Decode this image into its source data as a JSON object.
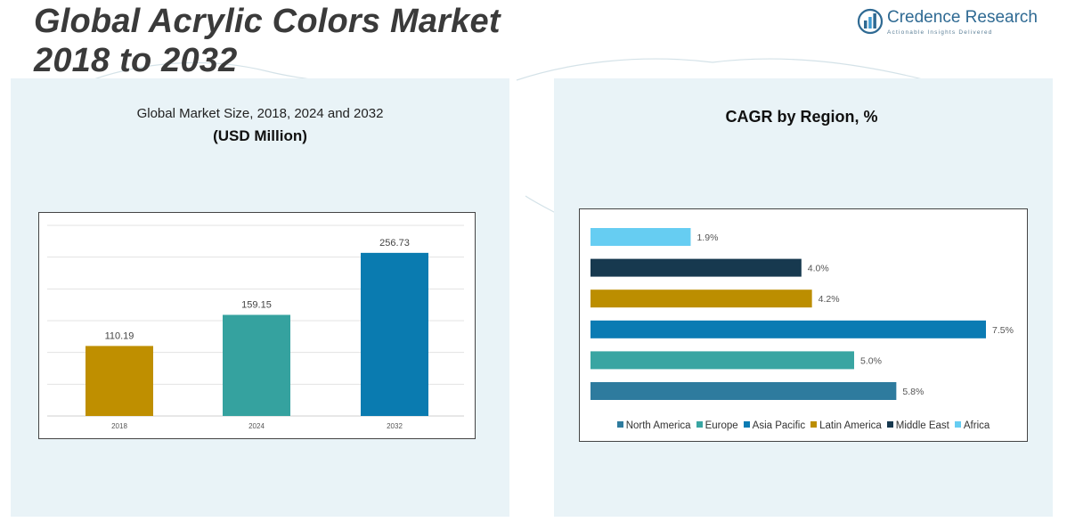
{
  "header": {
    "title_line1": "Global Acrylic Colors Market",
    "title_line2": "2018 to 2032"
  },
  "logo": {
    "name": "Credence Research",
    "tagline": "Actionable Insights Delivered",
    "icon": "bar-chart-logo-icon"
  },
  "left_panel": {
    "subtitle": "Global Market Size, 2018, 2024 and 2032",
    "unit": "(USD Million)"
  },
  "right_panel": {
    "title": "CAGR by Region, %"
  },
  "colors": {
    "2018": "#bf8f00",
    "2024": "#35a29f",
    "2032": "#0a7bb0",
    "north_america": "#2e7b9e",
    "europe": "#39a5a2",
    "asia_pacific": "#0b7bb3",
    "latin_america": "#bc8e00",
    "middle_east": "#17394f",
    "africa": "#66cdf2"
  },
  "chart_data": [
    {
      "type": "bar",
      "categories": [
        "2018",
        "2024",
        "2032"
      ],
      "values": [
        110.19,
        159.15,
        256.73
      ],
      "data_labels": [
        "110.19",
        "159.15",
        "256.73"
      ],
      "title": "Global Market Size, 2018, 2024 and 2032",
      "ylabel": "(USD Million)",
      "ylim": [
        0,
        300
      ],
      "grid": true
    },
    {
      "type": "bar",
      "orientation": "horizontal",
      "title": "CAGR by Region, %",
      "categories": [
        "Africa",
        "Middle East",
        "Latin America",
        "Asia Pacific",
        "Europe",
        "North America"
      ],
      "values": [
        1.9,
        4.0,
        4.2,
        7.5,
        5.0,
        5.8
      ],
      "data_labels": [
        "1.9%",
        "4.0%",
        "4.2%",
        "7.5%",
        "5.0%",
        "5.8%"
      ],
      "legend": [
        "North America",
        "Europe",
        "Asia Pacific",
        "Latin America",
        "Middle East",
        "Africa"
      ],
      "legend_position": "bottom",
      "xlim": [
        0,
        7.5
      ],
      "grid": false
    }
  ]
}
